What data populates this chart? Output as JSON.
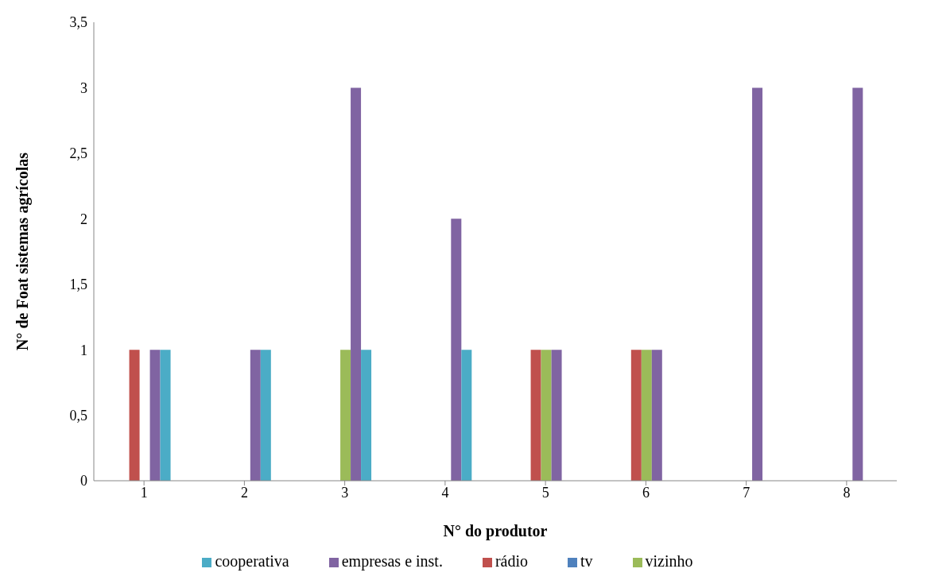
{
  "chart_data": {
    "type": "bar",
    "xlabel": "N° do produtor",
    "ylabel": "N° de Foat sistemas agrícolas",
    "categories": [
      "1",
      "2",
      "3",
      "4",
      "5",
      "6",
      "7",
      "8"
    ],
    "series": [
      {
        "name": "tv",
        "color": "#4f81bd",
        "values": [
          0,
          0,
          0,
          0,
          0,
          0,
          0,
          0
        ]
      },
      {
        "name": "rádio",
        "color": "#c0504d",
        "values": [
          1,
          0,
          0,
          0,
          1,
          1,
          0,
          0
        ]
      },
      {
        "name": "vizinho",
        "color": "#9bbb59",
        "values": [
          0,
          0,
          1,
          0,
          1,
          1,
          0,
          0
        ]
      },
      {
        "name": "empresas e inst.",
        "color": "#8064a2",
        "values": [
          1,
          1,
          3,
          2,
          1,
          1,
          3,
          3
        ]
      },
      {
        "name": "cooperativa",
        "color": "#4bacc6",
        "values": [
          1,
          1,
          1,
          1,
          0,
          0,
          0,
          0
        ]
      }
    ],
    "ylim": [
      0,
      3.5
    ],
    "yticks": [
      0,
      {
        "value": 0.5,
        "label": "0,5"
      },
      1,
      {
        "value": 1.5,
        "label": "1,5"
      },
      2,
      {
        "value": 2.5,
        "label": "2,5"
      },
      3,
      {
        "value": 3.5,
        "label": "3,5"
      }
    ],
    "grid": false,
    "legend": "bottom"
  }
}
